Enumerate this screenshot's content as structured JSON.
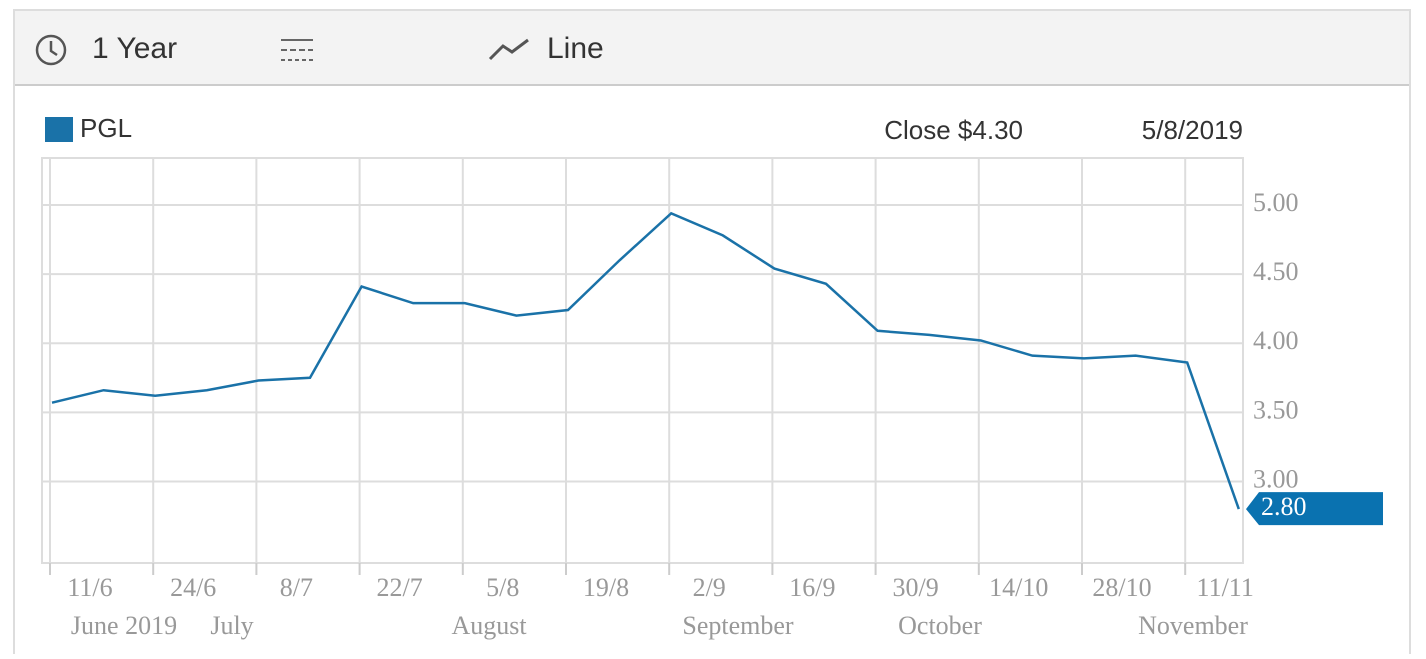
{
  "toolbar": {
    "range": "1 Year",
    "style": "Line"
  },
  "chart_data": {
    "type": "line",
    "legend": "PGL",
    "tooltip": {
      "text": "Close $4.30",
      "date": "5/8/2019"
    },
    "categories": [
      "11/6",
      null,
      "24/6",
      null,
      "8/7",
      null,
      "22/7",
      null,
      "5/8",
      null,
      "19/8",
      null,
      "2/9",
      null,
      "16/9",
      null,
      "30/9",
      null,
      "14/10",
      null,
      "28/10",
      null,
      "11/11",
      null
    ],
    "months": [
      "June 2019",
      "July",
      "August",
      "September",
      "October",
      "November"
    ],
    "series": [
      {
        "name": "PGL",
        "color": "#1a72a8",
        "values": [
          3.57,
          3.66,
          3.62,
          3.66,
          3.73,
          3.75,
          4.41,
          4.29,
          4.29,
          4.2,
          4.24,
          4.6,
          4.94,
          4.78,
          4.54,
          4.43,
          4.09,
          4.06,
          4.02,
          3.91,
          3.89,
          3.91,
          3.86,
          2.8
        ],
        "value_labels": [
          null,
          null,
          null,
          null,
          null,
          null,
          null,
          null,
          null,
          null,
          null,
          null,
          null,
          null,
          null,
          null,
          null,
          null,
          null,
          null,
          null,
          null,
          null,
          "2.80"
        ]
      }
    ],
    "ylim": [
      2.41,
      5.34
    ],
    "yticks": [
      {
        "value": 3,
        "label": "3.00"
      },
      {
        "value": 3.5,
        "label": "3.50"
      },
      {
        "value": 4,
        "label": "4.00"
      },
      {
        "value": 4.5,
        "label": "4.50"
      },
      {
        "value": 5,
        "label": "5.00"
      }
    ],
    "grid": true
  }
}
